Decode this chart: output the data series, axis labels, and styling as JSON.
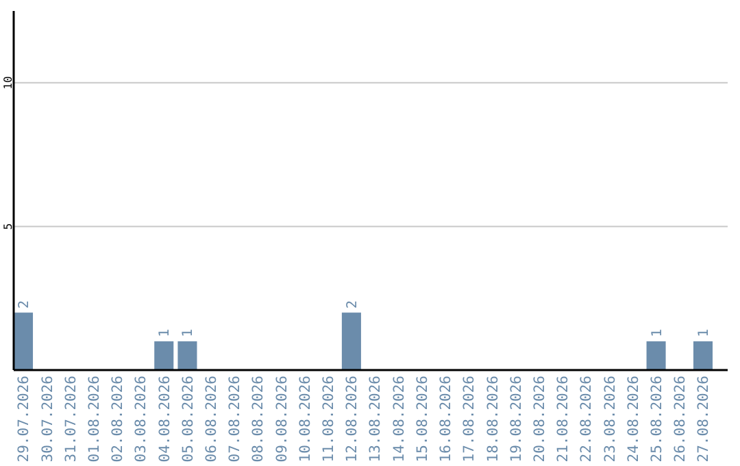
{
  "chart_data": {
    "type": "bar",
    "categories": [
      "29.07.2026",
      "30.07.2026",
      "31.07.2026",
      "01.08.2026",
      "02.08.2026",
      "03.08.2026",
      "04.08.2026",
      "05.08.2026",
      "06.08.2026",
      "07.08.2026",
      "08.08.2026",
      "09.08.2026",
      "10.08.2026",
      "11.08.2026",
      "12.08.2026",
      "13.08.2026",
      "14.08.2026",
      "15.08.2026",
      "16.08.2026",
      "17.08.2026",
      "18.08.2026",
      "19.08.2026",
      "20.08.2026",
      "21.08.2026",
      "22.08.2026",
      "23.08.2026",
      "24.08.2026",
      "25.08.2026",
      "26.08.2026",
      "27.08.2026"
    ],
    "values": [
      2,
      0,
      0,
      0,
      0,
      0,
      1,
      1,
      0,
      0,
      0,
      0,
      0,
      0,
      2,
      0,
      0,
      0,
      0,
      0,
      0,
      0,
      0,
      0,
      0,
      0,
      0,
      1,
      0,
      1
    ],
    "value_labels": [
      "2",
      null,
      null,
      null,
      null,
      null,
      "1",
      "1",
      null,
      null,
      null,
      null,
      null,
      null,
      "2",
      null,
      null,
      null,
      null,
      null,
      null,
      null,
      null,
      null,
      null,
      null,
      null,
      "1",
      null,
      "1"
    ],
    "color": "#6b8cab",
    "ylim": [
      0,
      12.5
    ],
    "yticks": [
      5,
      10
    ],
    "grid": "y"
  }
}
